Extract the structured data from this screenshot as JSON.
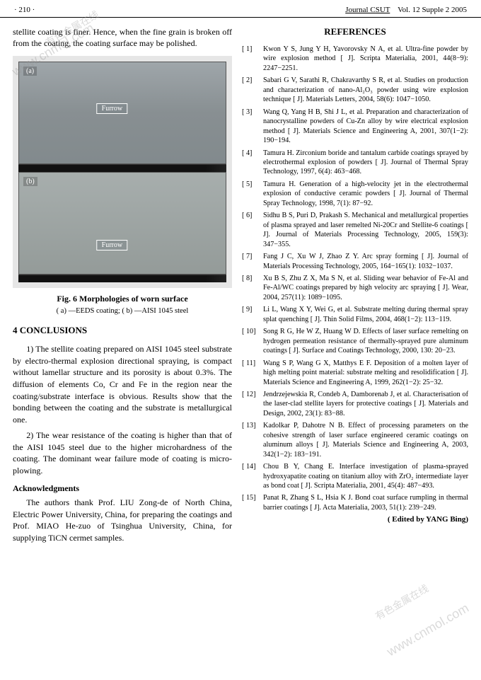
{
  "header": {
    "page": "· 210 ·",
    "journal": "Journal CSUT",
    "issue": "Vol. 12   Supple 2   2005"
  },
  "watermarks": {
    "cn1": "www.cnmol.com",
    "cn2": "有色金属在线",
    "cn3": "www.cnmol.com",
    "cn4": "有色金属在线"
  },
  "left": {
    "intro": "stellite coating is finer. Hence, when the fine grain is broken off from the coating, the coating surface may be polished.",
    "panel_a": "(a)",
    "panel_b": "(b)",
    "furrow": "Furrow",
    "fig_caption": "Fig. 6   Morphologies of worn surface",
    "fig_sub": "( a) —EEDS coating; ( b) —AISI 1045 steel",
    "conclusions_h": "4   CONCLUSIONS",
    "p1": "1) The stellite coating prepared on AISI 1045 steel substrate by electro-thermal explosion directional spraying, is compact without lamellar structure and its porosity is about 0.3%. The diffusion of elements Co, Cr and Fe in the region near the coating/substrate interface is obvious. Results show that the bonding between the coating and the substrate is metallurgical one.",
    "p2": "2) The wear resistance of the coating is higher than that of the AISI 1045 steel due to the higher microhardness of the coating. The dominant wear failure mode of coating is micro-plowing.",
    "ack_h": "Acknowledgments",
    "ack": "The authors thank Prof. LIU Zong-de of North China, Electric Power University, China, for preparing the coatings and Prof. MIAO He-zuo of Tsinghua University, China, for supplying TiCN cermet samples."
  },
  "right": {
    "refs_h": "REFERENCES",
    "refs": [
      {
        "n": "[ 1]",
        "t": "Kwon Y S, Jung Y H, Yavorovsky N A, et al. Ultra-fine powder by wire explosion method [ J]. Scripta Materialia, 2001, 44(8−9): 2247−2251."
      },
      {
        "n": "[ 2]",
        "t": "Sabari G V, Sarathi R, Chakravarthy S R, et al. Studies on production and characterization of nano-Al₂O₃ powder using wire explosion technique [ J]. Materials Letters, 2004, 58(6): 1047−1050."
      },
      {
        "n": "[ 3]",
        "t": "Wang Q, Yang H B, Shi J L, et al. Preparation and characterization of nanocrystalline powders of Cu-Zn alloy by wire electrical explosion method [ J]. Materials Science and Engineering A, 2001, 307(1−2): 190−194."
      },
      {
        "n": "[ 4]",
        "t": "Tamura H. Zirconium boride and tantalum carbide coatings sprayed by electrothermal explosion of powders [ J]. Journal of Thermal Spray Technology, 1997, 6(4): 463−468."
      },
      {
        "n": "[ 5]",
        "t": "Tamura H. Generation of a high-velocity jet in the electrothermal explosion of conductive ceramic powders [ J]. Journal of Thermal Spray Technology, 1998, 7(1): 87−92."
      },
      {
        "n": "[ 6]",
        "t": "Sidhu B S, Puri D, Prakash S. Mechanical and metallurgical properties of plasma sprayed and laser remelted Ni-20Cr and Stellite-6 coatings [ J]. Journal of Materials Processing Technology, 2005, 159(3): 347−355."
      },
      {
        "n": "[ 7]",
        "t": "Fang J C, Xu W J, Zhao Z Y. Arc spray forming [ J]. Journal of Materials Processing Technology, 2005, 164−165(1): 1032−1037."
      },
      {
        "n": "[ 8]",
        "t": "Xu B S, Zhu Z X, Ma S N, et al. Sliding wear behavior of Fe-Al and Fe-Al/WC coatings prepared by high velocity arc spraying [ J]. Wear, 2004, 257(11): 1089−1095."
      },
      {
        "n": "[ 9]",
        "t": "Li L, Wang X Y, Wei G, et al. Substrate melting during thermal spray splat quenching [ J]. Thin Solid Films, 2004, 468(1−2): 113−119."
      },
      {
        "n": "[ 10]",
        "t": "Song R G, He W Z, Huang W D. Effects of laser surface remelting on hydrogen permeation resistance of thermally-sprayed pure aluminum coatings [ J]. Surface and Coatings Technology, 2000, 130: 20−23."
      },
      {
        "n": "[ 11]",
        "t": "Wang S P, Wang G X, Matthys E F. Deposition of a molten layer of high melting point material: substrate melting and resolidification [ J]. Materials Science and Engineering A, 1999, 262(1−2): 25−32."
      },
      {
        "n": "[ 12]",
        "t": "Jendrzejewskia R, Condeb A, Damborenab J, et al. Characterisation of the laser-clad stellite layers for protective coatings [ J]. Materials and Design, 2002, 23(1): 83−88."
      },
      {
        "n": "[ 13]",
        "t": "Kadolkar P, Dahotre N B. Effect of processing parameters on the cohesive strength of laser surface engineered ceramic coatings on aluminum alloys [ J]. Materials Science and Engineering A, 2003, 342(1−2): 183−191."
      },
      {
        "n": "[ 14]",
        "t": "Chou B Y, Chang E. Interface investigation of plasma-sprayed hydroxyapatite coating on titanium alloy with ZrO₂ intermediate layer as bond coat [ J]. Scripta Materialia, 2001, 45(4): 487−493."
      },
      {
        "n": "[ 15]",
        "t": "Panat R, Zhang S L, Hsia K J. Bond coat surface rumpling in thermal barrier coatings [ J]. Acta Materialia, 2003, 51(1): 239−249."
      }
    ],
    "edited": "( Edited by YANG Bing)"
  }
}
